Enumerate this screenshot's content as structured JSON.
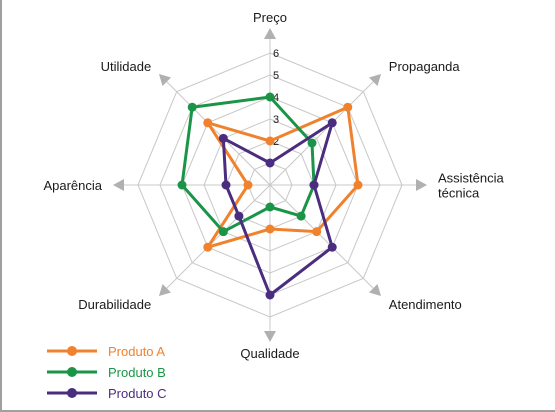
{
  "chart_data": {
    "type": "radar",
    "axes": [
      "Preço",
      "Propaganda",
      "Assistência técnica",
      "Atendimento",
      "Qualidade",
      "Durabilidade",
      "Aparência",
      "Utilidade"
    ],
    "axis_label_lines": [
      [
        "Preço"
      ],
      [
        "Propaganda"
      ],
      [
        "Assistência",
        "técnica"
      ],
      [
        "Atendimento"
      ],
      [
        "Qualidade"
      ],
      [
        "Durabilidade"
      ],
      [
        "Aparência"
      ],
      [
        "Utilidade"
      ]
    ],
    "rmax": 6,
    "ticks": [
      2,
      3,
      4,
      5,
      6
    ],
    "grid": true,
    "legend_position": "bottom-left",
    "series": [
      {
        "name": "Produto A",
        "color": "#f0822d",
        "values": [
          2,
          5,
          4,
          3,
          2,
          4,
          1,
          4
        ]
      },
      {
        "name": "Produto B",
        "color": "#1a9548",
        "values": [
          4,
          2.7,
          2,
          2,
          1,
          3,
          4,
          5
        ]
      },
      {
        "name": "Produto C",
        "color": "#4b2d7f",
        "values": [
          1,
          4,
          2,
          4,
          5,
          2,
          2,
          3
        ]
      }
    ]
  }
}
